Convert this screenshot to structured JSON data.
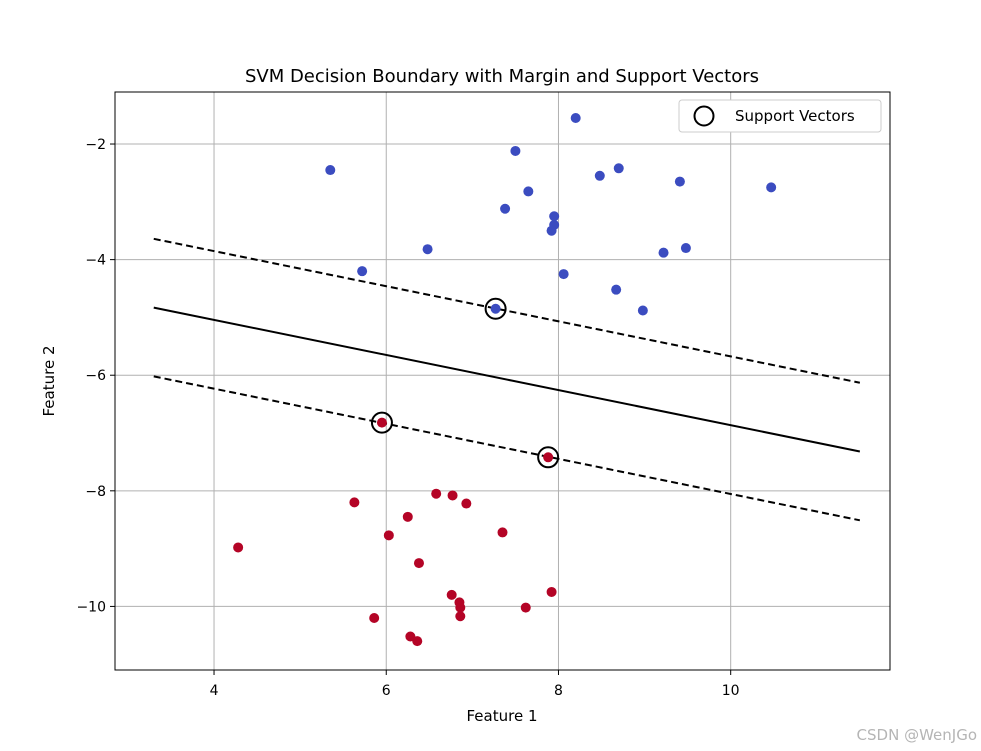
{
  "chart_data": {
    "type": "scatter",
    "title": "SVM Decision Boundary with Margin and Support Vectors",
    "xlabel": "Feature 1",
    "ylabel": "Feature 2",
    "xlim": [
      2.85,
      11.85
    ],
    "ylim": [
      -11.1,
      -1.1
    ],
    "xticks": [
      4,
      6,
      8,
      10
    ],
    "yticks": [
      -2,
      -4,
      -6,
      -8,
      -10
    ],
    "xtick_labels": [
      "4",
      "6",
      "8",
      "10"
    ],
    "ytick_labels": [
      "−2",
      "−4",
      "−6",
      "−8",
      "−10"
    ],
    "grid": true,
    "legend": {
      "position": "top-right",
      "entries": [
        "Support Vectors"
      ]
    },
    "colors": {
      "class_0": "#3b4cc0",
      "class_1": "#b40426",
      "lines": "#000000",
      "grid": "#b0b0b0"
    },
    "series": [
      {
        "name": "class 0",
        "color": "#3b4cc0",
        "points": [
          [
            8.2,
            -1.55
          ],
          [
            7.5,
            -2.12
          ],
          [
            5.35,
            -2.45
          ],
          [
            8.48,
            -2.55
          ],
          [
            8.7,
            -2.42
          ],
          [
            9.41,
            -2.65
          ],
          [
            10.47,
            -2.75
          ],
          [
            7.65,
            -2.82
          ],
          [
            7.38,
            -3.12
          ],
          [
            7.95,
            -3.25
          ],
          [
            7.95,
            -3.4
          ],
          [
            7.92,
            -3.5
          ],
          [
            6.48,
            -3.82
          ],
          [
            9.48,
            -3.8
          ],
          [
            9.22,
            -3.88
          ],
          [
            5.72,
            -4.2
          ],
          [
            8.06,
            -4.25
          ],
          [
            8.67,
            -4.52
          ],
          [
            8.98,
            -4.88
          ],
          [
            7.27,
            -4.85
          ]
        ]
      },
      {
        "name": "class 1",
        "color": "#b40426",
        "points": [
          [
            5.95,
            -6.82
          ],
          [
            7.88,
            -7.42
          ],
          [
            6.58,
            -8.05
          ],
          [
            6.77,
            -8.08
          ],
          [
            5.63,
            -8.2
          ],
          [
            6.93,
            -8.22
          ],
          [
            6.25,
            -8.45
          ],
          [
            7.35,
            -8.72
          ],
          [
            6.03,
            -8.77
          ],
          [
            4.28,
            -8.98
          ],
          [
            6.38,
            -9.25
          ],
          [
            6.76,
            -9.8
          ],
          [
            7.92,
            -9.75
          ],
          [
            6.85,
            -9.93
          ],
          [
            6.86,
            -10.02
          ],
          [
            7.62,
            -10.02
          ],
          [
            5.86,
            -10.2
          ],
          [
            6.86,
            -10.17
          ],
          [
            6.28,
            -10.52
          ],
          [
            6.36,
            -10.6
          ]
        ]
      }
    ],
    "support_vectors": [
      [
        7.27,
        -4.85
      ],
      [
        5.95,
        -6.82
      ],
      [
        7.88,
        -7.42
      ]
    ],
    "lines": [
      {
        "name": "decision boundary",
        "style": "solid",
        "x": [
          3.3,
          11.5
        ],
        "y": [
          -4.83,
          -7.32
        ]
      },
      {
        "name": "upper margin",
        "style": "dashed",
        "x": [
          3.3,
          11.5
        ],
        "y": [
          -3.64,
          -6.13
        ]
      },
      {
        "name": "lower margin",
        "style": "dashed",
        "x": [
          3.3,
          11.5
        ],
        "y": [
          -6.02,
          -8.51
        ]
      }
    ]
  },
  "watermark": "CSDN @WenJGo"
}
